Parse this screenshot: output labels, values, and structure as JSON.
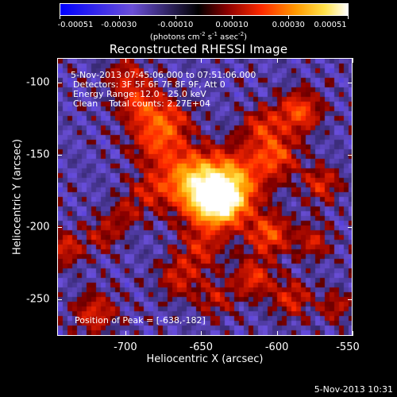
{
  "plot": {
    "title": "Reconstructed RHESSI Image"
  },
  "colorbar": {
    "tick_labels": [
      "-0.00051",
      "-0.00030",
      "-0.00010",
      "0.00010",
      "0.00030",
      "0.00051"
    ],
    "tick_values": [
      -0.00051,
      -0.0003,
      -0.0001,
      0.0001,
      0.0003,
      0.00051
    ],
    "range": [
      -0.00051,
      0.00051
    ],
    "units_pre": "(photons cm",
    "units_exp1": "-2",
    "units_mid": " s",
    "units_exp2": "-1",
    "units_mid2": " asec",
    "units_exp3": "-2",
    "units_post": ")",
    "colors": [
      "#0000ff",
      "#6a4fd8",
      "#000000",
      "#8a0000",
      "#ff2a00",
      "#ff9a00",
      "#ffe24a",
      "#ffffff"
    ]
  },
  "annotations": {
    "time_range": "5-Nov-2013 07:45:06.000 to 07:51:06.000",
    "detectors": "Detectors: 3F 5F 6F 7F 8F 9F, Att 0",
    "energy_range": "Energy Range: 12.0 - 25.0 keV",
    "algorithm": "Clean",
    "total_counts": "Total counts: 2.27E+04",
    "peak_position": "Position of Peak = [-638,-182]"
  },
  "footer": {
    "timestamp": "5-Nov-2013 10:31"
  },
  "chart_data": {
    "type": "heatmap",
    "title": "Reconstructed RHESSI Image",
    "xlabel": "Heliocentric X (arcsec)",
    "ylabel": "Heliocentric Y (arcsec)",
    "xlim": [
      -745,
      -550
    ],
    "ylim": [
      -275,
      -83
    ],
    "x_ticks": [
      -700,
      -650,
      -600,
      -550
    ],
    "x_tick_labels": [
      "-700",
      "-650",
      "-600",
      "-550"
    ],
    "y_ticks": [
      -100,
      -150,
      -200,
      -250
    ],
    "y_tick_labels": [
      "-100",
      "-150",
      "-200",
      "-250"
    ],
    "peak": [
      -638,
      -182
    ],
    "value_range": [
      -0.00051,
      0.00051
    ]
  }
}
